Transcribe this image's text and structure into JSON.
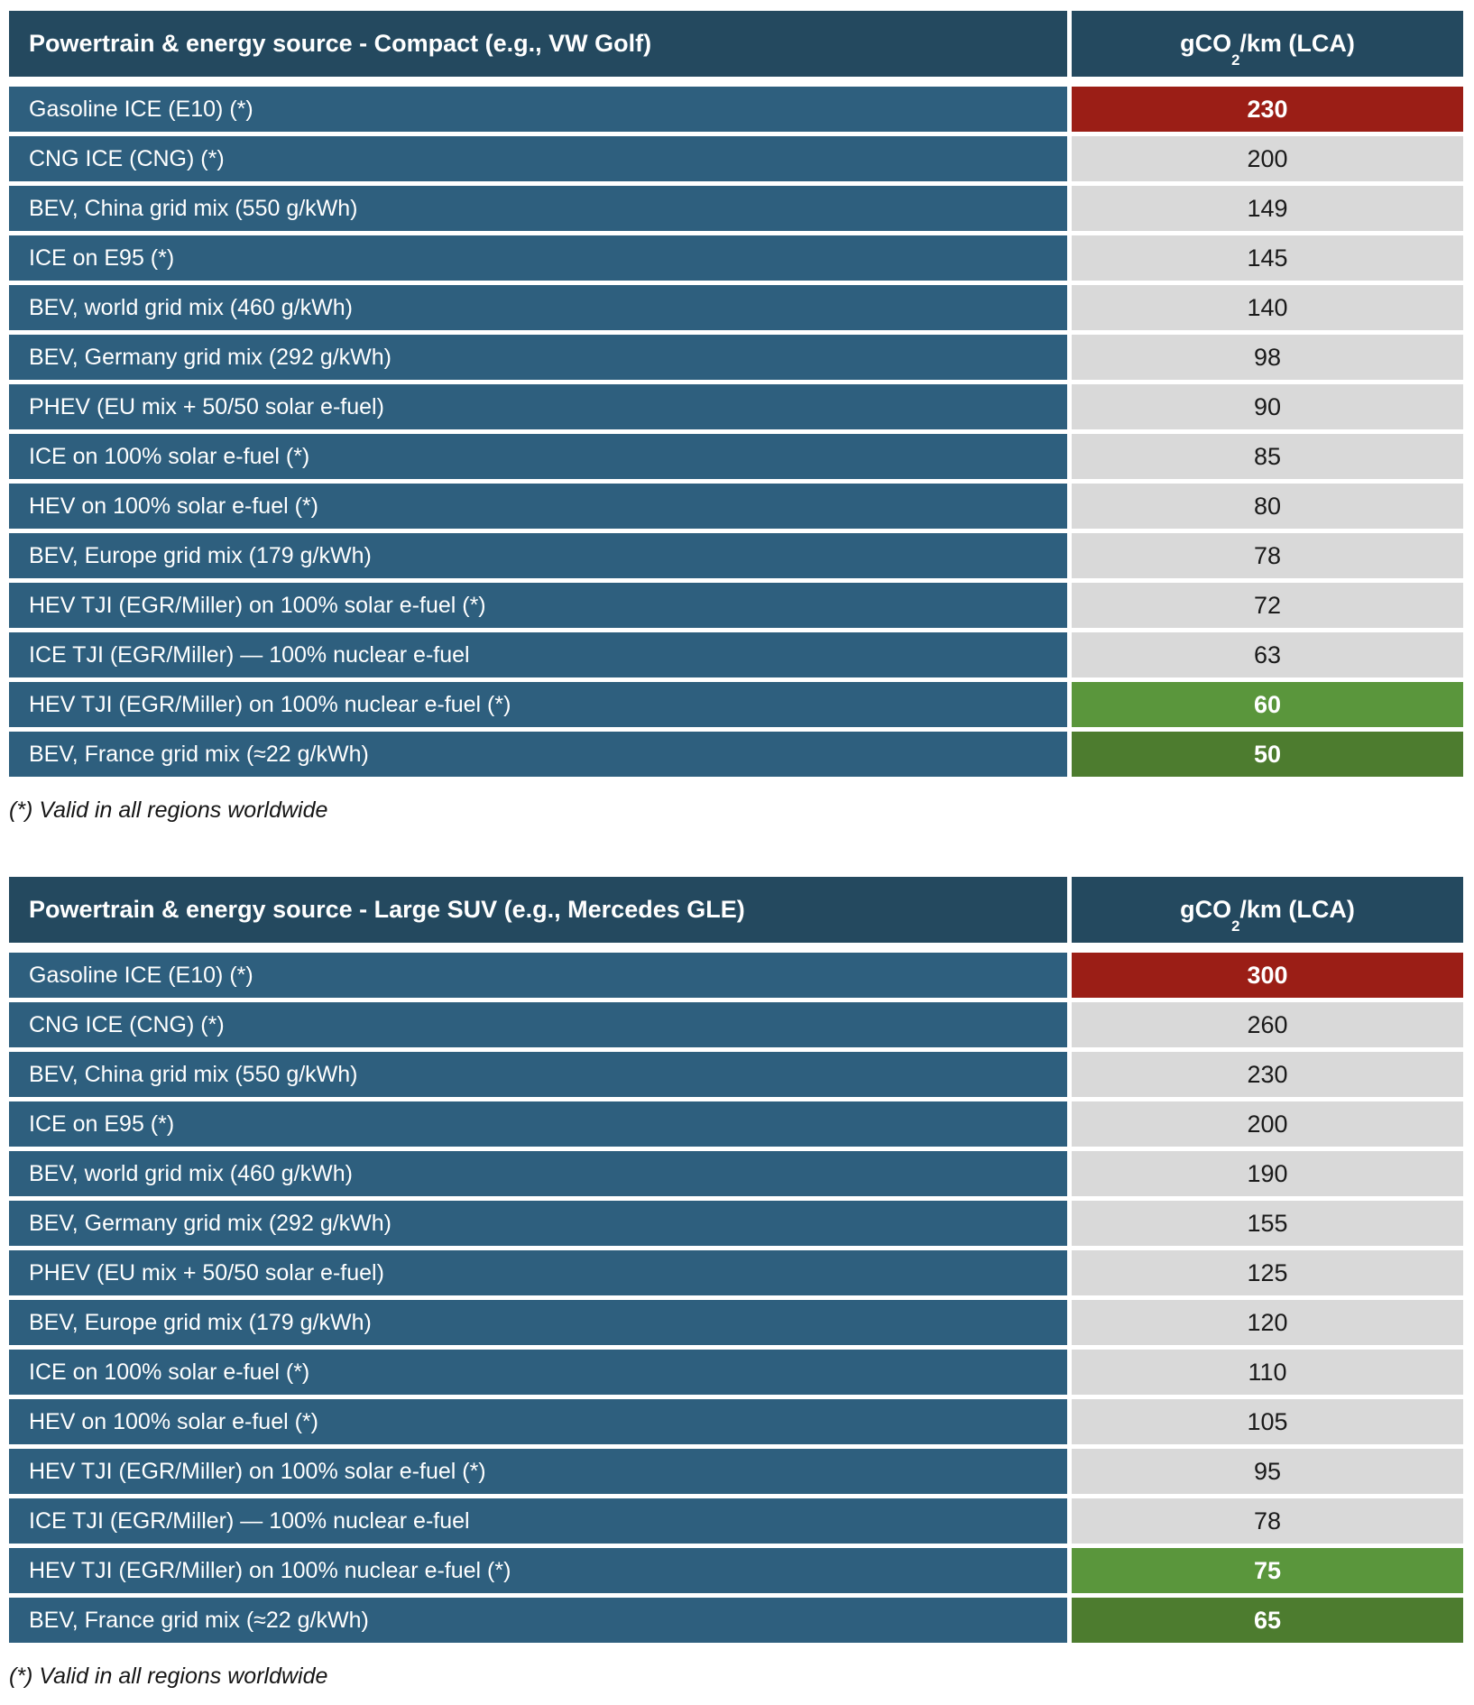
{
  "palette": {
    "header_blue": "#24495f",
    "row_blue": "#2e5f7e",
    "worst_red": "#9b1e16",
    "neutral_gray": "#d9d9d9",
    "best_green": "#5a963c",
    "best_dark_green": "#4d7c2f",
    "text_on_dark": "#ffffff",
    "text_on_gray": "#1a1a1a"
  },
  "tables": [
    {
      "header": {
        "label": "Powertrain & energy source - Compact (e.g., VW Golf)",
        "unit_prefix": "gCO",
        "unit_sub": "2",
        "unit_suffix": "/km (LCA)"
      },
      "rows": [
        {
          "label": "Gasoline ICE (E10) (*)",
          "value": "230",
          "highlight": "red"
        },
        {
          "label": "CNG ICE (CNG) (*)",
          "value": "200",
          "highlight": "gray"
        },
        {
          "label": "BEV, China grid mix (550 g/kWh)",
          "value": "149",
          "highlight": "gray"
        },
        {
          "label": "ICE on E95 (*)",
          "value": "145",
          "highlight": "gray"
        },
        {
          "label": "BEV, world grid mix (460 g/kWh)",
          "value": "140",
          "highlight": "gray"
        },
        {
          "label": "BEV, Germany grid mix (292 g/kWh)",
          "value": "98",
          "highlight": "gray"
        },
        {
          "label": "PHEV (EU mix + 50/50 solar e-fuel)",
          "value": "90",
          "highlight": "gray"
        },
        {
          "label": "ICE on 100% solar e-fuel (*)",
          "value": "85",
          "highlight": "gray"
        },
        {
          "label": "HEV on 100% solar e-fuel (*)",
          "value": "80",
          "highlight": "gray"
        },
        {
          "label": "BEV, Europe grid mix (179 g/kWh)",
          "value": "78",
          "highlight": "gray"
        },
        {
          "label": "HEV TJI (EGR/Miller) on 100% solar e-fuel (*)",
          "value": "72",
          "highlight": "gray"
        },
        {
          "label": "ICE TJI (EGR/Miller) — 100% nuclear e-fuel",
          "value": "63",
          "highlight": "gray"
        },
        {
          "label": "HEV TJI (EGR/Miller) on 100% nuclear e-fuel (*)",
          "value": "60",
          "highlight": "green"
        },
        {
          "label": "BEV, France grid mix (≈22 g/kWh)",
          "value": "50",
          "highlight": "darkgreen"
        }
      ],
      "footnote": "(*) Valid in all regions worldwide"
    },
    {
      "header": {
        "label": "Powertrain & energy source - Large SUV (e.g., Mercedes GLE)",
        "unit_prefix": "gCO",
        "unit_sub": "2",
        "unit_suffix": "/km (LCA)"
      },
      "rows": [
        {
          "label": "Gasoline ICE (E10) (*)",
          "value": "300",
          "highlight": "red"
        },
        {
          "label": "CNG ICE (CNG) (*)",
          "value": "260",
          "highlight": "gray"
        },
        {
          "label": "BEV, China grid mix (550 g/kWh)",
          "value": "230",
          "highlight": "gray"
        },
        {
          "label": "ICE on E95 (*)",
          "value": "200",
          "highlight": "gray"
        },
        {
          "label": "BEV, world grid mix (460 g/kWh)",
          "value": "190",
          "highlight": "gray"
        },
        {
          "label": "BEV, Germany grid mix (292 g/kWh)",
          "value": "155",
          "highlight": "gray"
        },
        {
          "label": "PHEV (EU mix + 50/50 solar e-fuel)",
          "value": "125",
          "highlight": "gray"
        },
        {
          "label": "BEV, Europe grid mix (179 g/kWh)",
          "value": "120",
          "highlight": "gray"
        },
        {
          "label": "ICE on 100% solar e-fuel (*)",
          "value": "110",
          "highlight": "gray"
        },
        {
          "label": "HEV on 100% solar e-fuel (*)",
          "value": "105",
          "highlight": "gray"
        },
        {
          "label": "HEV TJI (EGR/Miller) on 100% solar e-fuel (*)",
          "value": "95",
          "highlight": "gray"
        },
        {
          "label": "ICE TJI (EGR/Miller) — 100% nuclear e-fuel",
          "value": "78",
          "highlight": "gray"
        },
        {
          "label": "HEV TJI (EGR/Miller) on 100% nuclear e-fuel (*)",
          "value": "75",
          "highlight": "green"
        },
        {
          "label": "BEV, France grid mix (≈22 g/kWh)",
          "value": "65",
          "highlight": "darkgreen"
        }
      ],
      "footnote": "(*) Valid in all regions worldwide"
    }
  ],
  "chart_data": [
    {
      "type": "table",
      "title": "Powertrain & energy source - Compact (e.g., VW Golf)",
      "columns": [
        "Powertrain & energy source - Compact (e.g., VW Golf)",
        "gCO2/km (LCA)"
      ],
      "categories": [
        "Gasoline ICE (E10) (*)",
        "CNG ICE (CNG) (*)",
        "BEV, China grid mix (550 g/kWh)",
        "ICE on E95 (*)",
        "BEV, world grid mix (460 g/kWh)",
        "BEV, Germany grid mix (292 g/kWh)",
        "PHEV (EU mix + 50/50 solar e-fuel)",
        "ICE on 100% solar e-fuel (*)",
        "HEV on 100% solar e-fuel (*)",
        "BEV, Europe grid mix (179 g/kWh)",
        "HEV TJI (EGR/Miller) on 100% solar e-fuel (*)",
        "ICE TJI (EGR/Miller) — 100% nuclear e-fuel",
        "HEV TJI (EGR/Miller) on 100% nuclear e-fuel (*)",
        "BEV, France grid mix (≈22 g/kWh)"
      ],
      "values": [
        230,
        200,
        149,
        145,
        140,
        98,
        90,
        85,
        80,
        78,
        72,
        63,
        60,
        50
      ],
      "annotations": [
        "(*) Valid in all regions worldwide"
      ],
      "value_highlights": [
        "red",
        "gray",
        "gray",
        "gray",
        "gray",
        "gray",
        "gray",
        "gray",
        "gray",
        "gray",
        "gray",
        "gray",
        "green",
        "dark-green"
      ]
    },
    {
      "type": "table",
      "title": "Powertrain & energy source - Large SUV (e.g., Mercedes GLE)",
      "columns": [
        "Powertrain & energy source - Large SUV (e.g., Mercedes GLE)",
        "gCO2/km (LCA)"
      ],
      "categories": [
        "Gasoline ICE (E10) (*)",
        "CNG ICE (CNG) (*)",
        "BEV, China grid mix (550 g/kWh)",
        "ICE on E95 (*)",
        "BEV, world grid mix (460 g/kWh)",
        "BEV, Germany grid mix (292 g/kWh)",
        "PHEV (EU mix + 50/50 solar e-fuel)",
        "BEV, Europe grid mix (179 g/kWh)",
        "ICE on 100% solar e-fuel (*)",
        "HEV on 100% solar e-fuel (*)",
        "HEV TJI (EGR/Miller) on 100% solar e-fuel (*)",
        "ICE TJI (EGR/Miller) — 100% nuclear e-fuel",
        "HEV TJI (EGR/Miller) on 100% nuclear e-fuel (*)",
        "BEV, France grid mix (≈22 g/kWh)"
      ],
      "values": [
        300,
        260,
        230,
        200,
        190,
        155,
        125,
        120,
        110,
        105,
        95,
        78,
        75,
        65
      ],
      "annotations": [
        "(*) Valid in all regions worldwide"
      ],
      "value_highlights": [
        "red",
        "gray",
        "gray",
        "gray",
        "gray",
        "gray",
        "gray",
        "gray",
        "gray",
        "gray",
        "gray",
        "gray",
        "green",
        "dark-green"
      ]
    }
  ]
}
